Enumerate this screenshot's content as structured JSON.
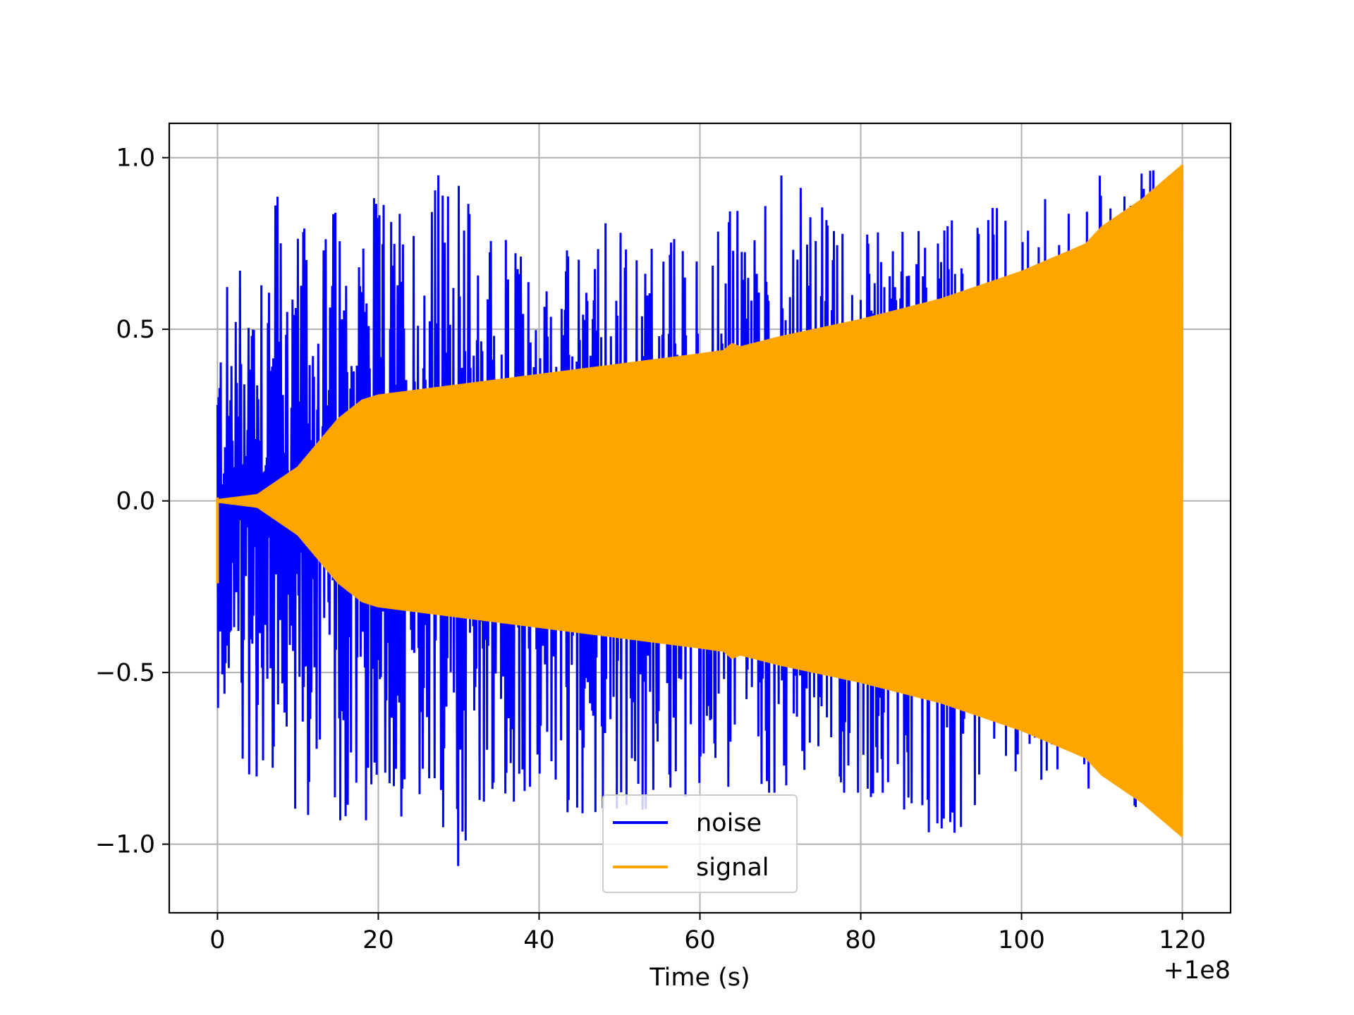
{
  "chart_data": {
    "type": "line",
    "title": "",
    "xlabel": "Time (s)",
    "ylabel": "",
    "x_offset_label": "+1e8",
    "xlim": [
      -6,
      126
    ],
    "ylim": [
      -1.2,
      1.1
    ],
    "x_ticks": [
      0,
      20,
      40,
      60,
      80,
      100,
      120
    ],
    "x_tick_labels": [
      "0",
      "20",
      "40",
      "60",
      "80",
      "100",
      "120"
    ],
    "y_ticks": [
      -1.0,
      -0.5,
      0.0,
      0.5,
      1.0
    ],
    "y_tick_labels": [
      "−1.0",
      "−0.5",
      "0.0",
      "0.5",
      "1.0"
    ],
    "grid": true,
    "legend_position": "bottom-center",
    "series": [
      {
        "name": "noise",
        "color": "#0000ff",
        "description_points": {
          "x": [
            0,
            5,
            10,
            15,
            20,
            28.7,
            35,
            40,
            50,
            60,
            70,
            80,
            90,
            100,
            110,
            120
          ],
          "envelope_max": [
            0.55,
            0.97,
            0.8,
            0.9,
            0.88,
            1.0,
            0.82,
            0.7,
            0.84,
            0.78,
            0.95,
            0.8,
            0.86,
            0.85,
            0.95,
            0.97
          ],
          "envelope_min": [
            -0.6,
            -0.85,
            -0.9,
            -1.0,
            -0.9,
            -1.1,
            -0.95,
            -0.9,
            -0.92,
            -0.85,
            -0.85,
            -0.85,
            -1.0,
            -0.8,
            -0.85,
            -0.95
          ]
        }
      },
      {
        "name": "signal",
        "color": "#ffa500",
        "description_points": {
          "x": [
            0,
            5,
            10,
            15,
            18,
            20,
            30,
            40,
            50,
            60,
            63,
            64,
            65,
            70,
            80,
            90,
            100,
            108,
            110,
            115,
            120
          ],
          "amplitude": [
            0.005,
            0.02,
            0.1,
            0.24,
            0.295,
            0.31,
            0.34,
            0.37,
            0.4,
            0.43,
            0.44,
            0.46,
            0.45,
            0.48,
            0.53,
            0.59,
            0.67,
            0.75,
            0.8,
            0.88,
            0.98
          ]
        }
      }
    ]
  }
}
